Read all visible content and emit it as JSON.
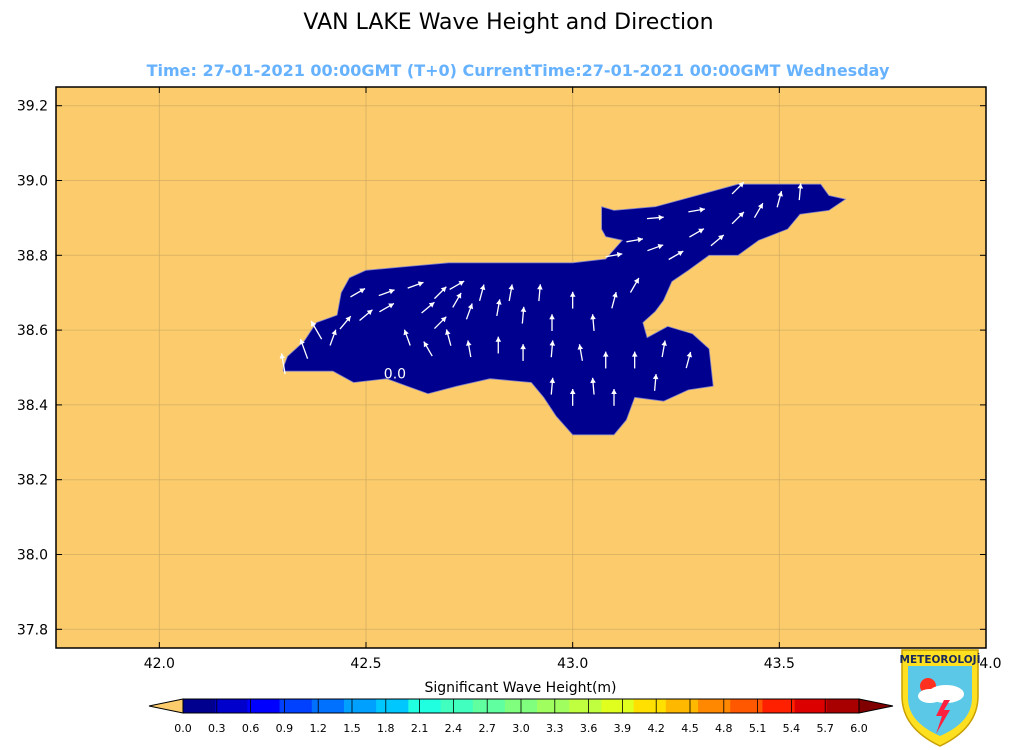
{
  "title": "VAN LAKE Wave Height and Direction",
  "subtitle": "Time: 27-01-2021 00:00GMT (T+0)  CurrentTime:27-01-2021 00:00GMT Wednesday",
  "map": {
    "lon_range": [
      41.75,
      44.0
    ],
    "lat_range": [
      37.75,
      39.25
    ],
    "x_ticks": [
      "42.0",
      "42.5",
      "43.0",
      "43.5",
      "44.0"
    ],
    "x_tick_values": [
      42.0,
      42.5,
      43.0,
      43.5,
      44.0
    ],
    "y_ticks": [
      "37.8",
      "38.0",
      "38.2",
      "38.4",
      "38.6",
      "38.8",
      "39.0",
      "39.2"
    ],
    "y_tick_values": [
      37.8,
      38.0,
      38.2,
      38.4,
      38.6,
      38.8,
      39.0,
      39.2
    ],
    "land_color": "#fccc6c",
    "water_color": "#00008f",
    "arrow_color": "#ffffff",
    "contour_label": "0.0",
    "contour_label_position": [
      42.57,
      38.47
    ],
    "lake_outline": [
      [
        42.3,
        38.5
      ],
      [
        42.31,
        38.53
      ],
      [
        42.35,
        38.57
      ],
      [
        42.38,
        38.62
      ],
      [
        42.43,
        38.64
      ],
      [
        42.44,
        38.7
      ],
      [
        42.46,
        38.74
      ],
      [
        42.5,
        38.76
      ],
      [
        42.6,
        38.77
      ],
      [
        42.7,
        38.78
      ],
      [
        42.8,
        38.78
      ],
      [
        42.9,
        38.78
      ],
      [
        43.0,
        38.78
      ],
      [
        43.08,
        38.79
      ],
      [
        43.12,
        38.84
      ],
      [
        43.08,
        38.85
      ],
      [
        43.07,
        38.87
      ],
      [
        43.07,
        38.93
      ],
      [
        43.1,
        38.92
      ],
      [
        43.2,
        38.93
      ],
      [
        43.3,
        38.96
      ],
      [
        43.4,
        38.99
      ],
      [
        43.5,
        38.99
      ],
      [
        43.6,
        38.99
      ],
      [
        43.62,
        38.96
      ],
      [
        43.66,
        38.95
      ],
      [
        43.62,
        38.92
      ],
      [
        43.55,
        38.91
      ],
      [
        43.52,
        38.87
      ],
      [
        43.45,
        38.84
      ],
      [
        43.4,
        38.8
      ],
      [
        43.33,
        38.8
      ],
      [
        43.28,
        38.76
      ],
      [
        43.24,
        38.73
      ],
      [
        43.22,
        38.68
      ],
      [
        43.2,
        38.65
      ],
      [
        43.17,
        38.62
      ],
      [
        43.18,
        38.58
      ],
      [
        43.23,
        38.61
      ],
      [
        43.29,
        38.59
      ],
      [
        43.33,
        38.55
      ],
      [
        43.34,
        38.45
      ],
      [
        43.28,
        38.44
      ],
      [
        43.22,
        38.41
      ],
      [
        43.15,
        38.42
      ],
      [
        43.13,
        38.36
      ],
      [
        43.1,
        38.32
      ],
      [
        43.0,
        38.32
      ],
      [
        42.96,
        38.37
      ],
      [
        42.93,
        38.42
      ],
      [
        42.9,
        38.46
      ],
      [
        42.8,
        38.47
      ],
      [
        42.72,
        38.45
      ],
      [
        42.65,
        38.43
      ],
      [
        42.6,
        38.45
      ],
      [
        42.55,
        38.47
      ],
      [
        42.47,
        38.46
      ],
      [
        42.42,
        38.49
      ],
      [
        42.3,
        38.49
      ]
    ],
    "wave_arrows": [
      [
        42.3,
        38.51,
        -10,
        0.05
      ],
      [
        42.35,
        38.55,
        -20,
        0.05
      ],
      [
        42.38,
        38.6,
        -30,
        0.05
      ],
      [
        42.42,
        38.58,
        20,
        0.04
      ],
      [
        42.45,
        38.62,
        40,
        0.04
      ],
      [
        42.5,
        38.64,
        50,
        0.04
      ],
      [
        42.55,
        38.66,
        60,
        0.04
      ],
      [
        42.48,
        38.7,
        60,
        0.04
      ],
      [
        42.55,
        38.7,
        70,
        0.04
      ],
      [
        42.62,
        38.72,
        70,
        0.04
      ],
      [
        42.65,
        38.66,
        50,
        0.04
      ],
      [
        42.68,
        38.7,
        45,
        0.04
      ],
      [
        42.72,
        38.68,
        30,
        0.04
      ],
      [
        42.75,
        38.65,
        20,
        0.04
      ],
      [
        42.78,
        38.7,
        15,
        0.04
      ],
      [
        42.82,
        38.66,
        10,
        0.04
      ],
      [
        42.85,
        38.7,
        10,
        0.04
      ],
      [
        42.88,
        38.64,
        5,
        0.04
      ],
      [
        42.92,
        38.7,
        5,
        0.04
      ],
      [
        42.95,
        38.62,
        0,
        0.04
      ],
      [
        43.0,
        38.68,
        0,
        0.04
      ],
      [
        43.05,
        38.62,
        -5,
        0.04
      ],
      [
        43.1,
        38.68,
        15,
        0.04
      ],
      [
        43.15,
        38.72,
        30,
        0.04
      ],
      [
        42.6,
        38.58,
        -20,
        0.04
      ],
      [
        42.65,
        38.55,
        -30,
        0.04
      ],
      [
        42.7,
        38.58,
        -15,
        0.04
      ],
      [
        42.75,
        38.55,
        -10,
        0.04
      ],
      [
        42.82,
        38.56,
        0,
        0.04
      ],
      [
        42.88,
        38.54,
        0,
        0.04
      ],
      [
        42.95,
        38.55,
        5,
        0.04
      ],
      [
        43.02,
        38.54,
        -10,
        0.04
      ],
      [
        43.08,
        38.52,
        0,
        0.04
      ],
      [
        43.15,
        38.52,
        0,
        0.04
      ],
      [
        43.22,
        38.55,
        10,
        0.04
      ],
      [
        43.28,
        38.52,
        15,
        0.04
      ],
      [
        42.95,
        38.45,
        5,
        0.04
      ],
      [
        43.0,
        38.42,
        0,
        0.04
      ],
      [
        43.05,
        38.45,
        -5,
        0.04
      ],
      [
        43.1,
        38.42,
        0,
        0.04
      ],
      [
        43.2,
        38.46,
        5,
        0.04
      ],
      [
        43.1,
        38.8,
        80,
        0.04
      ],
      [
        43.15,
        38.84,
        80,
        0.04
      ],
      [
        43.2,
        38.82,
        70,
        0.04
      ],
      [
        43.25,
        38.8,
        60,
        0.04
      ],
      [
        43.3,
        38.86,
        60,
        0.04
      ],
      [
        43.35,
        38.84,
        50,
        0.04
      ],
      [
        43.4,
        38.9,
        45,
        0.04
      ],
      [
        43.45,
        38.92,
        30,
        0.04
      ],
      [
        43.5,
        38.95,
        15,
        0.04
      ],
      [
        43.55,
        38.97,
        5,
        0.04
      ],
      [
        43.2,
        38.9,
        85,
        0.04
      ],
      [
        43.3,
        38.92,
        80,
        0.04
      ],
      [
        43.4,
        38.98,
        45,
        0.04
      ],
      [
        42.68,
        38.62,
        45,
        0.04
      ],
      [
        42.72,
        38.72,
        60,
        0.04
      ]
    ]
  },
  "colorbar": {
    "label": "Significant Wave Height(m)",
    "ticks": [
      "0.0",
      "0.3",
      "0.6",
      "0.9",
      "1.2",
      "1.5",
      "1.8",
      "2.1",
      "2.4",
      "2.7",
      "3.0",
      "3.3",
      "3.6",
      "3.9",
      "4.2",
      "4.5",
      "4.8",
      "5.1",
      "5.4",
      "5.7",
      "6.0"
    ],
    "under_color": "#fccc6c",
    "over_color": "#800000",
    "colors": [
      "#00008f",
      "#0000cc",
      "#0000ff",
      "#0040ff",
      "#0070ff",
      "#00a0ff",
      "#00c8ff",
      "#20ffdf",
      "#40ffbf",
      "#60ff9f",
      "#80ff7f",
      "#a0ff5f",
      "#c0ff3f",
      "#e0ff1f",
      "#ffe000",
      "#ffb800",
      "#ff8800",
      "#ff5800",
      "#ff2000",
      "#dd0000",
      "#a80000"
    ]
  },
  "logo": {
    "text": "METEOROLOJİ",
    "shield_color": "#ffe020",
    "sky_color": "#5bc8e8"
  }
}
